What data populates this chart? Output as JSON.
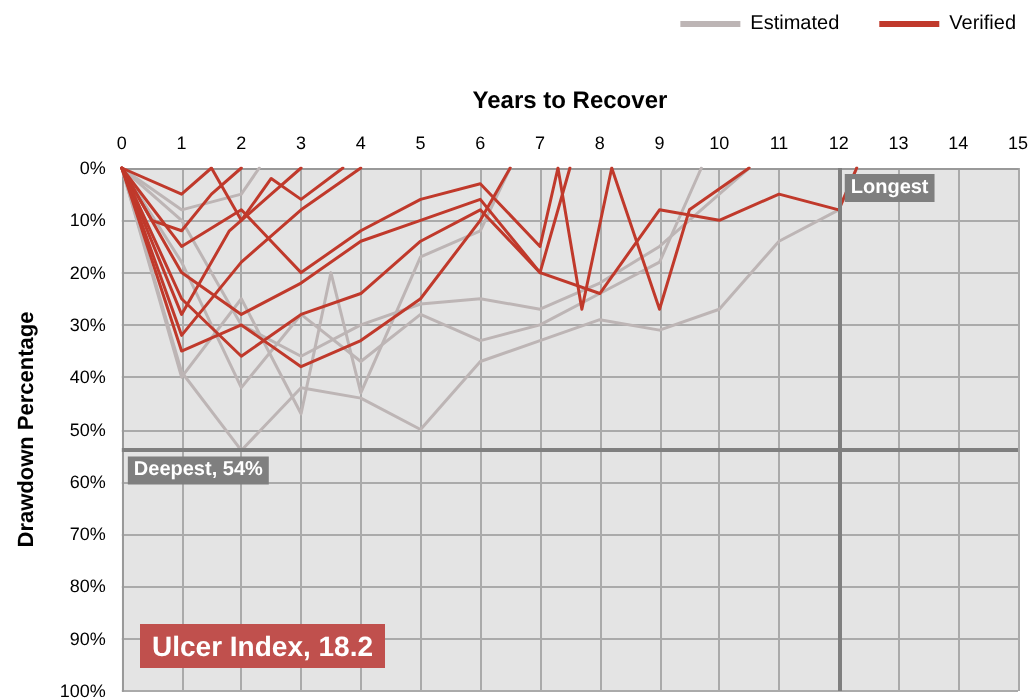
{
  "chart_data": {
    "type": "line",
    "xlabel": "Years to Recover",
    "ylabel": "Drawdown Percentage",
    "xlim": [
      0,
      15
    ],
    "xticks": [
      0,
      1,
      2,
      3,
      4,
      5,
      6,
      7,
      8,
      9,
      10,
      11,
      12,
      13,
      14,
      15
    ],
    "ylim": [
      100,
      0
    ],
    "yticks": [
      {
        "value": 0,
        "label": "0%"
      },
      {
        "value": 10,
        "label": "10%"
      },
      {
        "value": 20,
        "label": "20%"
      },
      {
        "value": 30,
        "label": "30%"
      },
      {
        "value": 40,
        "label": "40%"
      },
      {
        "value": 50,
        "label": "50%"
      },
      {
        "value": 60,
        "label": "60%"
      },
      {
        "value": 70,
        "label": "70%"
      },
      {
        "value": 80,
        "label": "80%"
      },
      {
        "value": 90,
        "label": "90%"
      },
      {
        "value": 100,
        "label": "100%"
      }
    ],
    "grid": true,
    "legend": "top right",
    "marker": "none",
    "line_style": "solid",
    "series": [
      {
        "name": "Estimated",
        "color": "#bdb5b5",
        "x": [
          0,
          1,
          2,
          3,
          4,
          5,
          6,
          7,
          8,
          9,
          10,
          11,
          12,
          12.3
        ],
        "values": [
          0,
          39,
          54,
          42,
          44,
          50,
          37,
          33,
          29,
          31,
          27,
          14,
          8,
          0
        ]
      },
      {
        "color": "#bdb5b5",
        "x": [
          0,
          1,
          2,
          3,
          3.5,
          4,
          5,
          6,
          6.5
        ],
        "values": [
          0,
          40,
          25,
          47,
          20,
          43,
          17,
          12,
          0
        ]
      },
      {
        "color": "#bdb5b5",
        "x": [
          0,
          1,
          2,
          3,
          4,
          5,
          6,
          7,
          8,
          9,
          10,
          10.5
        ],
        "values": [
          0,
          10,
          30,
          36,
          30,
          26,
          25,
          27,
          22,
          15,
          5,
          0
        ]
      },
      {
        "color": "#bdb5b5",
        "x": [
          0,
          1,
          2,
          3,
          4,
          5,
          6,
          7,
          8,
          9,
          9.7
        ],
        "values": [
          0,
          18,
          42,
          28,
          37,
          28,
          33,
          30,
          24,
          18,
          0
        ]
      },
      {
        "color": "#bdb5b5",
        "x": [
          0,
          1,
          2,
          2.3
        ],
        "values": [
          0,
          8,
          5,
          0
        ]
      },
      {
        "name": "Verified",
        "color": "#c0392b",
        "x": [
          0,
          1,
          2,
          3,
          4
        ],
        "values": [
          0,
          32,
          18,
          8,
          0
        ]
      },
      {
        "color": "#c0392b",
        "x": [
          0,
          1,
          1.8,
          2.5,
          3
        ],
        "values": [
          0,
          28,
          12,
          5,
          0
        ]
      },
      {
        "color": "#c0392b",
        "x": [
          0,
          1,
          2,
          3,
          4,
          5,
          6,
          6.5
        ],
        "values": [
          0,
          35,
          30,
          38,
          33,
          25,
          10,
          0
        ]
      },
      {
        "color": "#c0392b",
        "x": [
          0,
          1,
          2,
          3,
          4,
          5,
          6,
          7,
          7.5
        ],
        "values": [
          0,
          25,
          36,
          28,
          24,
          14,
          8,
          20,
          0
        ]
      },
      {
        "color": "#c0392b",
        "x": [
          0,
          0.5,
          1,
          1.5,
          2
        ],
        "values": [
          0,
          10,
          12,
          5,
          0
        ]
      },
      {
        "color": "#c0392b",
        "x": [
          0,
          1,
          2,
          3,
          4,
          5,
          6,
          7,
          8,
          9,
          10,
          11,
          12,
          12.3
        ],
        "values": [
          0,
          20,
          28,
          22,
          14,
          10,
          6,
          20,
          24,
          8,
          10,
          5,
          8,
          0
        ]
      },
      {
        "color": "#c0392b",
        "x": [
          0,
          1,
          2,
          3,
          4,
          5,
          6,
          7,
          7.3,
          7.7,
          8.2,
          9,
          9.5,
          10.5
        ],
        "values": [
          0,
          15,
          8,
          20,
          12,
          6,
          3,
          15,
          0,
          27,
          0,
          27,
          8,
          0
        ]
      },
      {
        "color": "#c0392b",
        "x": [
          0,
          1,
          1.5,
          2,
          2.5,
          3,
          3.7
        ],
        "values": [
          0,
          5,
          0,
          10,
          2,
          6,
          0
        ]
      }
    ],
    "ref_lines": [
      {
        "axis": "y",
        "value": 54,
        "label": "Deepest, 54%",
        "color": "#7f7f7f"
      },
      {
        "axis": "x",
        "value": 12,
        "label": "Longest",
        "color": "#7f7f7f"
      }
    ],
    "annotations": [
      "Ulcer Index, 18.2"
    ]
  }
}
